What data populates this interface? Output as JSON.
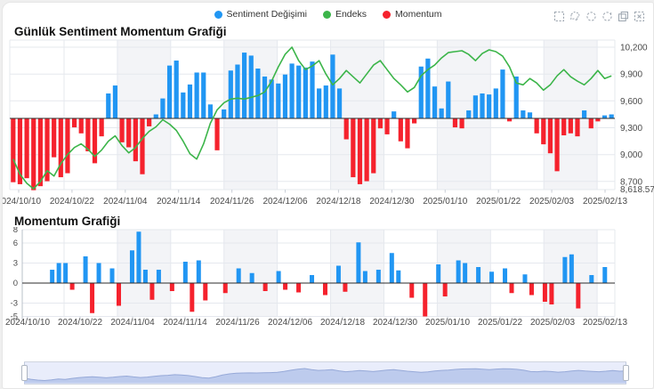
{
  "colors": {
    "blue": "#2196F3",
    "green": "#3CB54A",
    "red": "#F5222D",
    "grid_line": "#e5e8ee",
    "band": "#f3f4f7",
    "axis_label": "#4a4a4a",
    "axis_line_dark": "#2b2b2b",
    "dz_fill": "#cbd6ef",
    "dz_line": "#9fb0d8",
    "dz_selected": "rgba(92,125,223,0.12)"
  },
  "legend": {
    "items": [
      {
        "key": "sentiment",
        "label": "Sentiment Değişimi",
        "color": "#2196F3"
      },
      {
        "key": "endeks",
        "label": "Endeks",
        "color": "#3CB54A"
      },
      {
        "key": "momentum",
        "label": "Momentum",
        "color": "#F5222D"
      }
    ]
  },
  "toolbox": {
    "icons": [
      "box-zoom",
      "lasso-select",
      "restore",
      "refresh",
      "save-image",
      "clear-selection"
    ]
  },
  "chart_data": [
    {
      "type": "bar",
      "title": "Günlük Sentiment Momentum Grafiği",
      "x_tick_labels": [
        "2024/10/10",
        "2024/10/22",
        "2024/11/04",
        "2024/11/14",
        "2024/11/26",
        "2024/12/06",
        "2024/12/18",
        "2024/12/30",
        "2025/01/10",
        "2025/01/22",
        "2025/02/03",
        "2025/02/13"
      ],
      "right_axis": {
        "tick_labels": [
          "10,200",
          "9,900",
          "9,600",
          "9,300",
          "9,000",
          "8,700",
          "8,618.57"
        ],
        "ylim": [
          8618.57,
          10280
        ]
      },
      "bar_ylim": [
        -7.1,
        7.9
      ],
      "grid": true,
      "legend_position": "top-center",
      "series": [
        {
          "name": "Sentiment Değişimi",
          "type": "bar",
          "positive_color": "#2196F3",
          "negative_color": "#F5222D",
          "values": [
            -6.4,
            -6.6,
            -6.0,
            -7.2,
            -6.8,
            -6.3,
            -3.9,
            -5.9,
            -5.5,
            -0.9,
            -1.5,
            -3.3,
            -4.5,
            -1.8,
            2.5,
            3.3,
            -2.4,
            -2.9,
            -4.3,
            -5.6,
            -0.8,
            0.4,
            2.0,
            5.3,
            5.8,
            2.6,
            3.4,
            4.6,
            4.6,
            1.4,
            -3.2,
            0.9,
            4.8,
            5.4,
            6.6,
            6.3,
            5.0,
            4.2,
            3.9,
            3.5,
            4.4,
            5.5,
            5.3,
            5.1,
            5.7,
            3.0,
            3.3,
            6.4,
            3.0,
            -2.1,
            -5.9,
            -6.6,
            -6.3,
            -5.5,
            -1.0,
            -1.6,
            0.7,
            -2.3,
            -3.0,
            -0.5,
            5.2,
            6.0,
            3.2,
            1.0,
            3.7,
            -0.9,
            -1.0,
            0.8,
            2.3,
            2.5,
            2.4,
            3.0,
            4.9,
            -0.3,
            4.2,
            0.8,
            0.6,
            -1.5,
            -2.6,
            -3.5,
            -5.3,
            -1.7,
            -1.5,
            -1.8,
            0.8,
            -1.0,
            -0.3,
            0.3,
            0.4
          ]
        },
        {
          "name": "Endeks",
          "type": "line",
          "color": "#3CB54A",
          "values": [
            8950,
            8780,
            8680,
            8618.57,
            8700,
            8820,
            8760,
            8900,
            9000,
            9080,
            9120,
            9060,
            8980,
            9050,
            9150,
            9210,
            9100,
            9020,
            9080,
            9180,
            9260,
            9310,
            9390,
            9340,
            9270,
            9150,
            9010,
            8950,
            9120,
            9350,
            9500,
            9580,
            9620,
            9630,
            9620,
            9640,
            9660,
            9700,
            9820,
            9980,
            10120,
            10200,
            10050,
            9950,
            9990,
            10050,
            9900,
            9780,
            9850,
            9940,
            9870,
            9800,
            9900,
            10000,
            10050,
            9950,
            9850,
            9780,
            9700,
            9750,
            9880,
            9950,
            10000,
            10080,
            10140,
            10150,
            10160,
            10120,
            10050,
            10130,
            10170,
            10150,
            10100,
            9980,
            9800,
            9780,
            9850,
            9800,
            9720,
            9780,
            9880,
            9950,
            9870,
            9820,
            9780,
            9850,
            9940,
            9850,
            9880
          ]
        }
      ]
    },
    {
      "type": "bar",
      "title": "Momentum Grafiği",
      "x_tick_labels": [
        "2024/10/10",
        "2024/10/22",
        "2024/11/04",
        "2024/11/14",
        "2024/11/26",
        "2024/12/06",
        "2024/12/18",
        "2024/12/30",
        "2025/01/10",
        "2025/01/22",
        "2025/02/03",
        "2025/02/13"
      ],
      "y_tick_labels": [
        "8",
        "6",
        "3",
        "0",
        "-3",
        "-5"
      ],
      "y_tick_values": [
        8,
        6,
        3,
        0,
        -3,
        -5
      ],
      "ylim": [
        -5,
        8.6
      ],
      "grid": true,
      "series": [
        {
          "name": "Momentum",
          "type": "bar",
          "positive_color": "#2196F3",
          "negative_color": "#F5222D",
          "values": [
            0,
            0,
            0,
            0,
            2,
            3,
            3,
            -1,
            0,
            4,
            -4.5,
            3,
            0,
            2.2,
            -3.4,
            0,
            4.9,
            7.7,
            2,
            -2.5,
            2,
            0,
            -1.2,
            0,
            3.2,
            -4.3,
            3.4,
            -2.6,
            0,
            0,
            -1.5,
            0,
            2.2,
            0,
            1.5,
            0,
            -1.2,
            0,
            1.8,
            -1,
            0,
            -1.4,
            0,
            1.2,
            0,
            -1.8,
            0,
            2.6,
            -1.3,
            0,
            6.1,
            1.8,
            0,
            2,
            0,
            4.5,
            1.9,
            0,
            -2.2,
            0,
            -5,
            0,
            2.8,
            -2,
            0,
            3.4,
            3,
            0,
            2.4,
            0,
            1.7,
            0,
            2.2,
            -1.5,
            0,
            1.3,
            -1.8,
            0,
            -2.8,
            -3.2,
            0,
            3.9,
            4.3,
            -3.8,
            0,
            1.2,
            0,
            2.4,
            0
          ]
        }
      ]
    }
  ],
  "datazoom": {
    "preview_series": "Endeks",
    "range_percent": [
      0,
      100
    ]
  }
}
